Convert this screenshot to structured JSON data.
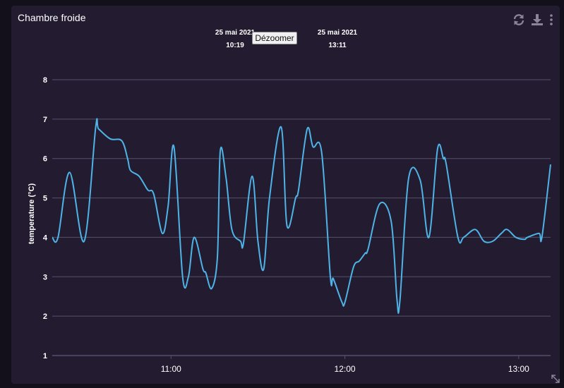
{
  "card": {
    "title": "Chambre froide"
  },
  "toolbar": {
    "icons": [
      "refresh-icon",
      "download-icon",
      "more-vertical-icon"
    ]
  },
  "zoom": {
    "start_date": "25 mai 2021",
    "start_time": "10:19",
    "end_date": "25 mai 2021",
    "end_time": "13:11",
    "reset_label": "Dézoomer"
  },
  "colors": {
    "line": "#4eb3e6",
    "grid": "#55506a",
    "text": "#ffffff",
    "background": "#231c31"
  },
  "chart_data": {
    "type": "line",
    "title": "",
    "xlabel": "",
    "ylabel": "temperature (°C)",
    "xlim": [
      "10:19",
      "13:11"
    ],
    "ylim": [
      1,
      8
    ],
    "yticks": [
      1,
      2,
      3,
      4,
      5,
      6,
      7,
      8
    ],
    "xticks": [
      {
        "label": "11:00",
        "minutes": 41
      },
      {
        "label": "12:00",
        "minutes": 101
      },
      {
        "label": "13:00",
        "minutes": 161
      }
    ],
    "grid": true,
    "series": [
      {
        "name": "temperature",
        "x_minutes": [
          0,
          2,
          6,
          11,
          15,
          16,
          20,
          24,
          26,
          27,
          30,
          33,
          35,
          38,
          40,
          42,
          45,
          47,
          49,
          52,
          53,
          55,
          57,
          58,
          60,
          62,
          65,
          66,
          69,
          71,
          73,
          75,
          79,
          81,
          84,
          85,
          88,
          90,
          93,
          96,
          97,
          100,
          101,
          104,
          106,
          108,
          109,
          113,
          117,
          119,
          120,
          123,
          127,
          130,
          133,
          135,
          136,
          140,
          142,
          146,
          149,
          152,
          155,
          157,
          160,
          163,
          164,
          168,
          169,
          172
        ],
        "values": [
          4.0,
          4.0,
          5.65,
          3.9,
          6.8,
          6.75,
          6.5,
          6.45,
          6.0,
          5.7,
          5.55,
          5.2,
          5.1,
          4.1,
          4.8,
          6.3,
          3.0,
          3.0,
          4.0,
          3.2,
          3.1,
          2.7,
          3.5,
          6.2,
          5.5,
          4.2,
          3.9,
          3.85,
          5.55,
          3.9,
          3.2,
          5.0,
          6.8,
          4.3,
          5.0,
          5.2,
          6.75,
          6.3,
          6.15,
          3.0,
          2.95,
          2.35,
          2.35,
          3.25,
          3.4,
          3.6,
          3.7,
          4.85,
          4.4,
          2.4,
          2.4,
          5.5,
          5.45,
          4.0,
          6.25,
          6.0,
          5.85,
          4.0,
          4.0,
          4.2,
          3.9,
          3.9,
          4.1,
          4.2,
          4.0,
          3.95,
          4.0,
          4.1,
          4.0,
          5.85
        ]
      }
    ]
  }
}
